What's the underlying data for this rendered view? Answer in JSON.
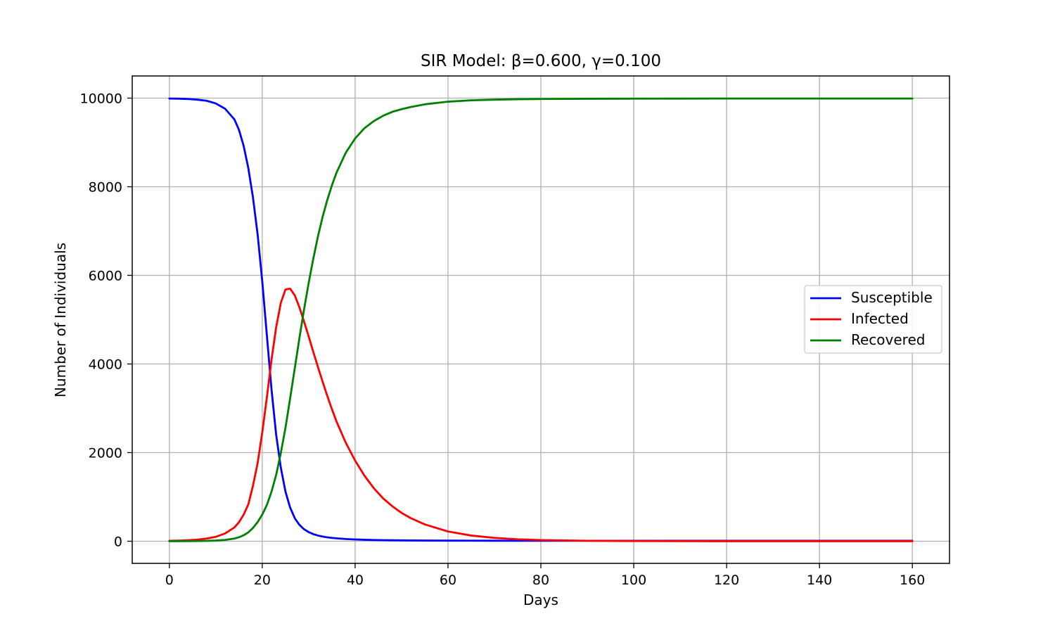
{
  "chart_data": {
    "type": "line",
    "title": "SIR Model: β=0.600, γ=0.100",
    "xlabel": "Days",
    "ylabel": "Number of Individuals",
    "xlim": [
      -8,
      168
    ],
    "ylim": [
      -500,
      10500
    ],
    "xticks": [
      0,
      20,
      40,
      60,
      80,
      100,
      120,
      140,
      160
    ],
    "yticks": [
      0,
      2000,
      4000,
      6000,
      8000,
      10000
    ],
    "grid": true,
    "legend_position": "center-right",
    "x": [
      0,
      2,
      4,
      6,
      8,
      10,
      12,
      14,
      15,
      16,
      17,
      18,
      19,
      20,
      21,
      22,
      23,
      24,
      25,
      26,
      27,
      28,
      29,
      30,
      31,
      32,
      33,
      34,
      35,
      36,
      38,
      40,
      42,
      44,
      46,
      48,
      50,
      52,
      55,
      60,
      65,
      70,
      75,
      80,
      90,
      100,
      110,
      120,
      130,
      140,
      150,
      160
    ],
    "series": [
      {
        "name": "Susceptible",
        "color": "#0000ff",
        "values": [
          9990,
          9987,
          9980,
          9965,
          9940,
          9880,
          9760,
          9520,
          9280,
          8920,
          8420,
          7760,
          6930,
          5870,
          4640,
          3420,
          2400,
          1660,
          1120,
          760,
          520,
          370,
          270,
          205,
          160,
          128,
          105,
          88,
          75,
          65,
          50,
          40,
          33,
          28,
          24,
          21,
          19,
          17,
          15,
          13,
          12,
          11,
          10,
          10,
          10,
          10,
          10,
          10,
          10,
          10,
          10,
          10
        ]
      },
      {
        "name": "Infected",
        "color": "#ff0000",
        "values": [
          10,
          14,
          22,
          35,
          60,
          100,
          175,
          310,
          430,
          600,
          830,
          1250,
          1760,
          2450,
          3250,
          4100,
          4830,
          5380,
          5680,
          5700,
          5550,
          5280,
          4960,
          4620,
          4270,
          3930,
          3600,
          3280,
          2980,
          2700,
          2220,
          1820,
          1480,
          1200,
          970,
          790,
          640,
          520,
          380,
          220,
          128,
          75,
          44,
          26,
          10,
          4,
          2,
          1,
          1,
          1,
          1,
          1
        ]
      },
      {
        "name": "Recovered",
        "color": "#008000",
        "values": [
          0,
          1,
          2,
          4,
          8,
          15,
          30,
          60,
          90,
          135,
          200,
          300,
          430,
          600,
          820,
          1120,
          1500,
          1990,
          2560,
          3220,
          3900,
          4580,
          5230,
          5830,
          6380,
          6880,
          7320,
          7700,
          8030,
          8320,
          8770,
          9090,
          9320,
          9480,
          9600,
          9690,
          9750,
          9800,
          9860,
          9920,
          9950,
          9965,
          9975,
          9980,
          9985,
          9988,
          9989,
          9990,
          9990,
          9990,
          9990,
          9990
        ]
      }
    ]
  }
}
